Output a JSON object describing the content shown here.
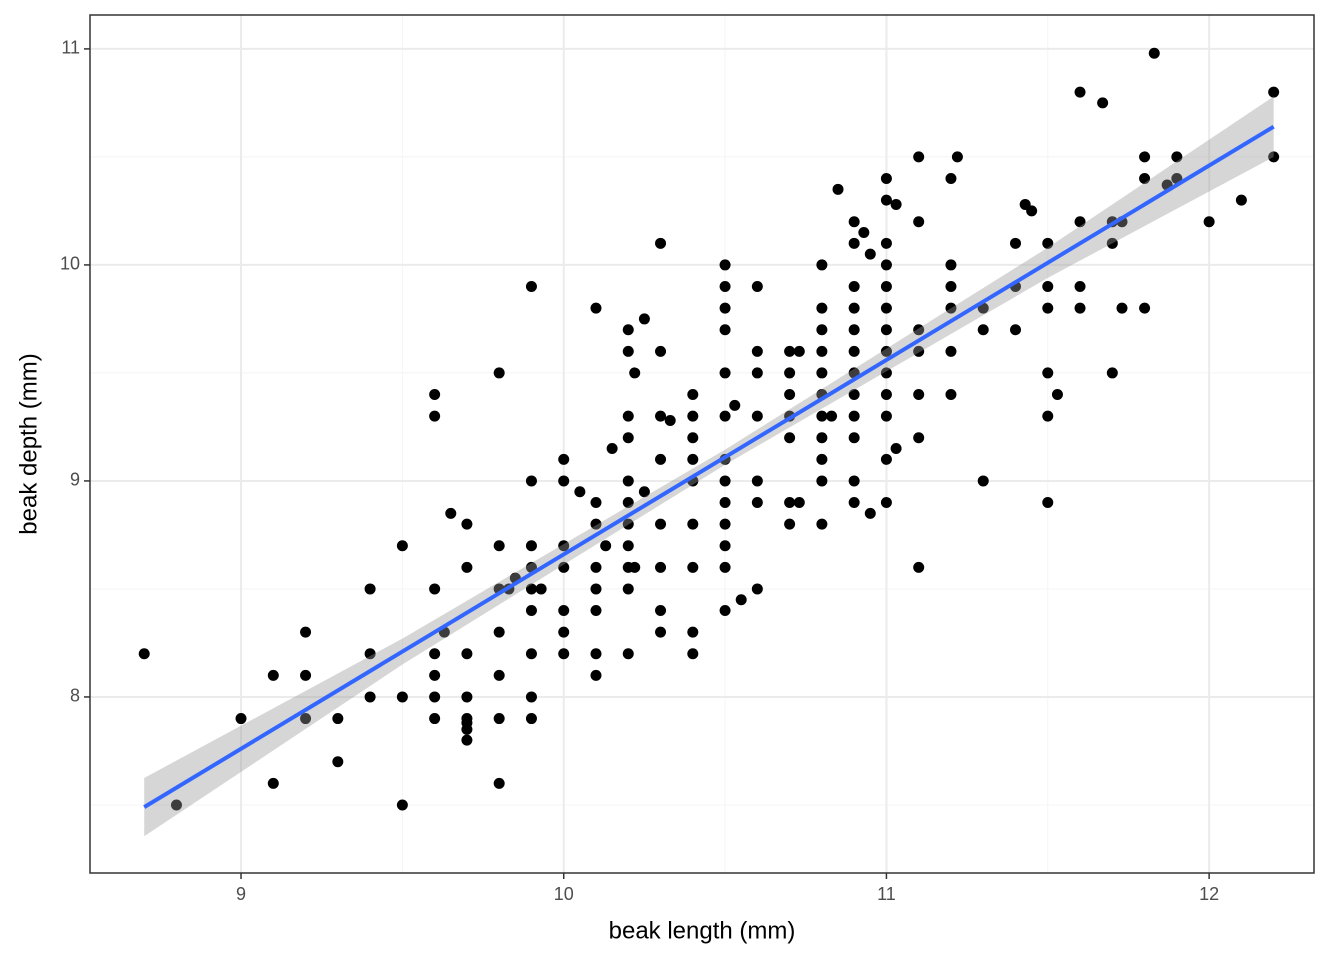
{
  "chart_data": {
    "type": "scatter",
    "xlabel": "beak length (mm)",
    "ylabel": "beak depth (mm)",
    "xlim": [
      8.532,
      12.325
    ],
    "ylim": [
      7.185,
      11.157
    ],
    "xticks": [
      9,
      10,
      11,
      12
    ],
    "yticks": [
      8,
      9,
      10,
      11
    ],
    "xminor": [
      9.5,
      10.5,
      11.5
    ],
    "yminor": [
      7.5,
      8.5,
      9.5,
      10.5
    ],
    "grid": true,
    "color": "#000000",
    "x": [
      8.7,
      8.8,
      9.0,
      9.1,
      9.1,
      9.2,
      9.2,
      9.2,
      9.3,
      9.3,
      9.4,
      9.4,
      9.4,
      9.5,
      9.5,
      9.5,
      9.6,
      9.6,
      9.6,
      9.6,
      9.6,
      9.6,
      9.6,
      9.63,
      9.65,
      9.7,
      9.7,
      9.7,
      9.7,
      9.7,
      9.7,
      9.7,
      9.7,
      9.8,
      9.8,
      9.8,
      9.8,
      9.8,
      9.8,
      9.8,
      9.83,
      9.85,
      9.9,
      9.9,
      9.9,
      9.9,
      9.9,
      9.9,
      9.9,
      9.9,
      9.9,
      9.93,
      10.0,
      10.0,
      10.0,
      10.0,
      10.0,
      10.0,
      10.0,
      10.05,
      10.1,
      10.1,
      10.1,
      10.1,
      10.1,
      10.1,
      10.1,
      10.1,
      10.13,
      10.15,
      10.2,
      10.2,
      10.2,
      10.2,
      10.2,
      10.2,
      10.2,
      10.2,
      10.2,
      10.2,
      10.2,
      10.22,
      10.22,
      10.25,
      10.25,
      10.3,
      10.3,
      10.3,
      10.3,
      10.3,
      10.3,
      10.3,
      10.3,
      10.33,
      10.4,
      10.4,
      10.4,
      10.4,
      10.4,
      10.4,
      10.4,
      10.4,
      10.4,
      10.5,
      10.5,
      10.5,
      10.5,
      10.5,
      10.5,
      10.5,
      10.5,
      10.5,
      10.5,
      10.5,
      10.5,
      10.5,
      10.53,
      10.55,
      10.6,
      10.6,
      10.6,
      10.6,
      10.6,
      10.6,
      10.6,
      10.7,
      10.7,
      10.7,
      10.7,
      10.7,
      10.7,
      10.7,
      10.73,
      10.73,
      10.8,
      10.8,
      10.8,
      10.8,
      10.8,
      10.8,
      10.8,
      10.8,
      10.8,
      10.8,
      10.8,
      10.83,
      10.85,
      10.9,
      10.9,
      10.9,
      10.9,
      10.9,
      10.9,
      10.9,
      10.9,
      10.9,
      10.9,
      10.9,
      10.9,
      10.93,
      10.95,
      10.95,
      11.0,
      11.0,
      11.0,
      11.0,
      11.0,
      11.0,
      11.0,
      11.0,
      11.0,
      11.0,
      11.0,
      11.0,
      11.0,
      11.03,
      11.03,
      11.1,
      11.1,
      11.1,
      11.1,
      11.1,
      11.1,
      11.1,
      11.2,
      11.2,
      11.2,
      11.2,
      11.2,
      11.2,
      11.22,
      11.3,
      11.3,
      11.3,
      11.4,
      11.4,
      11.4,
      11.43,
      11.45,
      11.5,
      11.5,
      11.5,
      11.5,
      11.5,
      11.5,
      11.53,
      11.6,
      11.6,
      11.6,
      11.6,
      11.67,
      11.7,
      11.7,
      11.7,
      11.73,
      11.73,
      11.8,
      11.8,
      11.8,
      11.83,
      11.87,
      11.9,
      11.9,
      12.0,
      12.1,
      12.2,
      12.2
    ],
    "values": [
      8.2,
      7.5,
      7.9,
      8.1,
      7.6,
      8.3,
      8.1,
      7.9,
      7.9,
      7.7,
      8.5,
      8.2,
      8.0,
      8.7,
      8.0,
      7.5,
      9.4,
      9.3,
      8.5,
      8.2,
      8.1,
      8.0,
      7.9,
      8.3,
      8.85,
      8.8,
      8.6,
      8.2,
      8.0,
      7.9,
      7.88,
      7.85,
      7.8,
      9.5,
      8.7,
      8.5,
      8.3,
      8.1,
      7.9,
      7.6,
      8.5,
      8.55,
      9.9,
      9.0,
      8.7,
      8.6,
      8.5,
      8.4,
      8.2,
      8.0,
      7.9,
      8.5,
      9.1,
      9.0,
      8.7,
      8.6,
      8.4,
      8.3,
      8.2,
      8.95,
      9.8,
      8.9,
      8.8,
      8.6,
      8.5,
      8.4,
      8.2,
      8.1,
      8.7,
      9.15,
      9.7,
      9.6,
      9.3,
      9.2,
      9.0,
      8.9,
      8.8,
      8.7,
      8.6,
      8.5,
      8.2,
      9.5,
      8.6,
      9.75,
      8.95,
      10.1,
      9.6,
      9.3,
      9.1,
      8.8,
      8.6,
      8.4,
      8.3,
      9.28,
      9.4,
      9.3,
      9.2,
      9.1,
      9.0,
      8.8,
      8.6,
      8.3,
      8.2,
      10.0,
      9.9,
      9.8,
      9.7,
      9.5,
      9.3,
      9.1,
      9.0,
      8.9,
      8.8,
      8.7,
      8.6,
      8.4,
      9.35,
      8.45,
      9.9,
      9.6,
      9.5,
      9.3,
      9.0,
      8.9,
      8.5,
      9.6,
      9.5,
      9.4,
      9.3,
      9.2,
      8.9,
      8.8,
      9.6,
      8.9,
      10.0,
      9.8,
      9.7,
      9.6,
      9.5,
      9.4,
      9.3,
      9.2,
      9.1,
      9.0,
      8.8,
      9.3,
      10.35,
      10.2,
      10.1,
      9.9,
      9.8,
      9.7,
      9.6,
      9.5,
      9.4,
      9.3,
      9.2,
      9.0,
      8.9,
      10.15,
      10.05,
      8.85,
      10.4,
      10.3,
      10.1,
      10.0,
      9.9,
      9.8,
      9.7,
      9.6,
      9.5,
      9.4,
      9.3,
      9.1,
      8.9,
      10.28,
      9.15,
      10.5,
      10.2,
      9.7,
      9.6,
      9.4,
      9.2,
      8.6,
      10.4,
      10.0,
      9.9,
      9.8,
      9.6,
      9.4,
      10.5,
      9.8,
      9.7,
      9.0,
      10.1,
      9.9,
      9.7,
      10.28,
      10.25,
      10.1,
      9.9,
      9.8,
      9.5,
      9.3,
      8.9,
      9.4,
      10.8,
      10.2,
      9.9,
      9.8,
      10.75,
      10.2,
      10.1,
      9.5,
      10.2,
      9.8,
      10.5,
      10.4,
      9.8,
      10.98,
      10.37,
      10.5,
      10.4,
      10.2,
      10.3,
      10.8,
      10.5
    ],
    "fit": {
      "x": [
        8.7,
        12.2
      ],
      "values": [
        7.49,
        10.64
      ],
      "color": "#3366ff"
    },
    "band": {
      "x": [
        8.7,
        9.5,
        10.5,
        11.5,
        12.2
      ],
      "lower": [
        7.355,
        8.15,
        9.075,
        9.94,
        10.5
      ],
      "upper": [
        7.625,
        8.27,
        9.145,
        10.08,
        10.78
      ],
      "color": "#999999"
    }
  }
}
